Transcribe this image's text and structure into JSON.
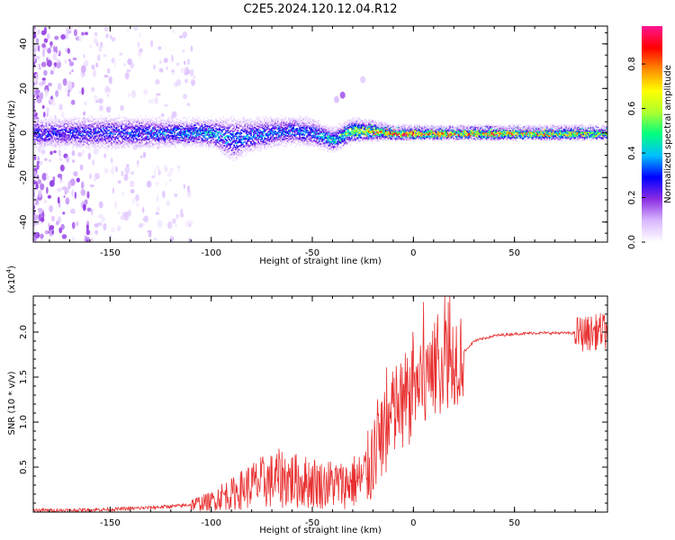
{
  "chart_data": [
    {
      "type": "heatmap",
      "title": "C2E5.2024.120.12.04.R12",
      "xlabel": "Height of straight line (km)",
      "ylabel": "Frequency (Hz)",
      "xlim": [
        -188,
        96
      ],
      "ylim": [
        -49,
        48
      ],
      "x_ticks": [
        -150,
        -100,
        -50,
        0,
        50
      ],
      "x_tick_labels": [
        "-150",
        "-100",
        "-50",
        "0",
        "50"
      ],
      "y_ticks": [
        -40,
        -20,
        0,
        20,
        40
      ],
      "y_tick_labels": [
        "-40",
        "-20",
        "0",
        "20",
        "40"
      ],
      "colorbar": {
        "label": "Normalized spectral amplitude",
        "range": [
          0,
          0.97
        ],
        "ticks": [
          0,
          0.2,
          0.4,
          0.6,
          0.8
        ],
        "tick_labels": [
          "0.0",
          "0.2",
          "0.4",
          "0.6",
          "0.8"
        ],
        "colormap": [
          "#ffffff",
          "#d9b8ff",
          "#8a2be2",
          "#0000ff",
          "#00bfff",
          "#00ff7f",
          "#adff2f",
          "#ffff00",
          "#ff8c00",
          "#ff0000",
          "#ff1493"
        ]
      },
      "ridge": {
        "description_points_x": [
          -188,
          -150,
          -120,
          -100,
          -90,
          -80,
          -60,
          -50,
          -40,
          -30,
          -20,
          -10,
          0,
          20,
          50,
          80,
          96
        ],
        "center_freq": [
          0,
          0,
          0,
          0,
          -3,
          -1,
          1,
          0,
          -3,
          1,
          1,
          0,
          0,
          0,
          0,
          0,
          0
        ],
        "half_width": [
          5,
          6,
          5,
          5,
          8,
          6,
          5,
          5,
          4,
          4,
          3,
          2,
          2,
          2,
          2,
          2,
          2
        ],
        "peak_amplitude": [
          0.3,
          0.3,
          0.35,
          0.4,
          0.35,
          0.35,
          0.35,
          0.35,
          0.45,
          0.6,
          0.75,
          0.8,
          0.85,
          0.8,
          0.75,
          0.7,
          0.6
        ]
      }
    },
    {
      "type": "line",
      "title": "",
      "xlabel": "Height of straight line (km)",
      "ylabel": "SNR (10 * v/v)",
      "scale_label": "(x10^4)",
      "xlim": [
        -188,
        96
      ],
      "ylim": [
        0,
        2.4
      ],
      "x_ticks": [
        -150,
        -100,
        -50,
        0,
        50
      ],
      "x_tick_labels": [
        "-150",
        "-100",
        "-50",
        "0",
        "50"
      ],
      "y_ticks": [
        0.5,
        1.0,
        1.5,
        2.0
      ],
      "y_tick_labels": [
        "0.5",
        "1.0",
        "1.5",
        "2.0"
      ],
      "color": "#e83030",
      "series": [
        {
          "x": [
            -188,
            -170,
            -150,
            -130,
            -115,
            -105,
            -100,
            -95,
            -90,
            -85,
            -80,
            -75,
            -70,
            -65,
            -60,
            -55,
            -50,
            -45,
            -40,
            -35,
            -30,
            -25,
            -22,
            -20,
            -15,
            -10,
            -8,
            -5,
            0,
            5,
            10,
            15,
            20,
            25,
            30,
            40,
            50,
            60,
            70,
            80,
            85,
            90,
            93,
            96
          ],
          "values": [
            0.02,
            0.02,
            0.03,
            0.05,
            0.07,
            0.1,
            0.12,
            0.18,
            0.2,
            0.25,
            0.3,
            0.33,
            0.35,
            0.38,
            0.36,
            0.33,
            0.34,
            0.3,
            0.32,
            0.3,
            0.34,
            0.36,
            0.5,
            0.62,
            0.85,
            1.05,
            1.2,
            1.12,
            1.35,
            1.4,
            1.55,
            1.68,
            1.72,
            1.78,
            1.9,
            1.96,
            1.98,
            1.99,
            1.99,
            1.99,
            1.98,
            2.0,
            2.02,
            2.0
          ]
        }
      ]
    }
  ]
}
